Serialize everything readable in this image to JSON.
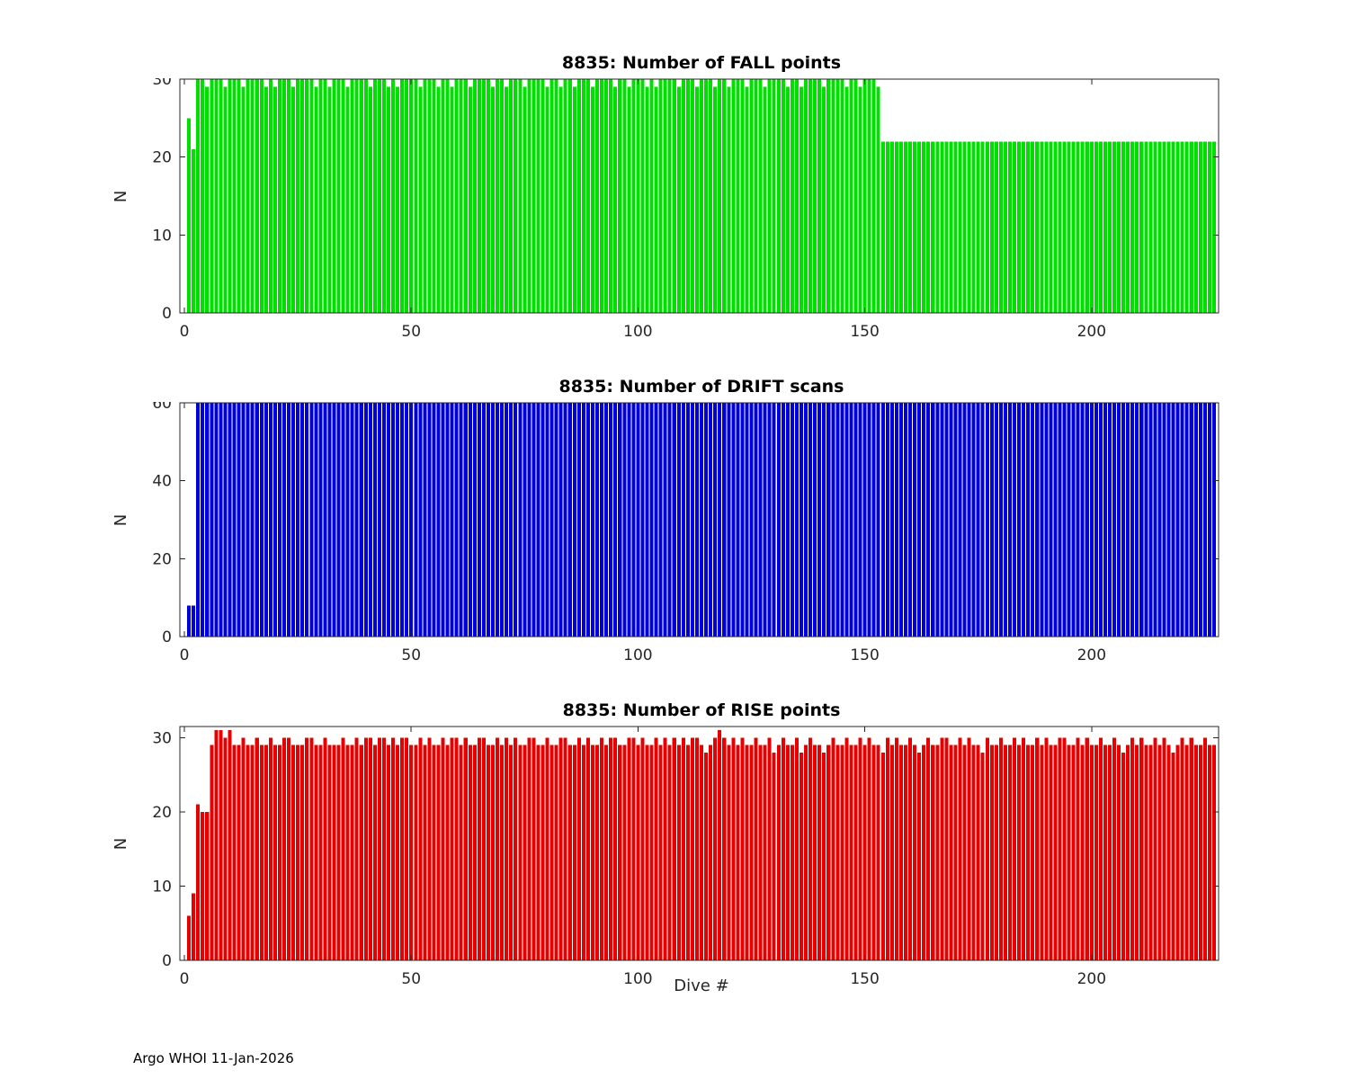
{
  "figure": {
    "footer": "Argo WHOI 11-Jan-2026"
  },
  "style": {
    "background": "#ffffff",
    "axis_color": "#262626",
    "title_color": "#000000",
    "fall_color": "#00e000",
    "drift_color": "#0000dd",
    "rise_color": "#e80000"
  },
  "chart_data": [
    {
      "type": "bar",
      "title": "8835: Number of FALL points",
      "ylabel": "N",
      "color": "#00e000",
      "ylim": [
        0,
        30
      ],
      "yticks": [
        0,
        10,
        20,
        30
      ],
      "xticks": [
        0,
        50,
        100,
        150,
        200
      ],
      "x_start": 1,
      "values": [
        25,
        21,
        30,
        30,
        29,
        30,
        30,
        30,
        29,
        30,
        30,
        30,
        29,
        30,
        30,
        30,
        30,
        29,
        30,
        29,
        30,
        30,
        30,
        29,
        30,
        30,
        30,
        30,
        29,
        30,
        30,
        29,
        30,
        30,
        30,
        29,
        30,
        30,
        30,
        30,
        29,
        30,
        30,
        30,
        29,
        30,
        29,
        30,
        30,
        30,
        30,
        29,
        30,
        30,
        30,
        29,
        30,
        30,
        29,
        30,
        30,
        30,
        29,
        30,
        30,
        30,
        30,
        29,
        30,
        30,
        29,
        30,
        30,
        30,
        29,
        30,
        30,
        30,
        30,
        29,
        30,
        30,
        29,
        30,
        30,
        29,
        30,
        30,
        30,
        29,
        30,
        30,
        30,
        30,
        29,
        30,
        30,
        29,
        30,
        30,
        30,
        29,
        30,
        29,
        30,
        30,
        30,
        30,
        29,
        30,
        30,
        30,
        29,
        30,
        30,
        30,
        29,
        30,
        30,
        29,
        30,
        30,
        30,
        29,
        30,
        30,
        30,
        29,
        30,
        30,
        30,
        30,
        29,
        30,
        30,
        29,
        30,
        30,
        30,
        30,
        29,
        30,
        30,
        30,
        30,
        29,
        30,
        30,
        29,
        30,
        30,
        30,
        29,
        22,
        22,
        22,
        22,
        22,
        22,
        22,
        22,
        22,
        22,
        22,
        22,
        22,
        22,
        22,
        22,
        22,
        22,
        22,
        22,
        22,
        22,
        22,
        22,
        22,
        22,
        22,
        22,
        22,
        22,
        22,
        22,
        22,
        22,
        22,
        22,
        22,
        22,
        22,
        22,
        22,
        22,
        22,
        22,
        22,
        22,
        22,
        22,
        22,
        22,
        22,
        22,
        22,
        22,
        22,
        22,
        22,
        22,
        22,
        22,
        22,
        22,
        22,
        22,
        22,
        22,
        22,
        22,
        22,
        22,
        22,
        22,
        22,
        22
      ]
    },
    {
      "type": "bar",
      "title": "8835: Number of DRIFT scans",
      "ylabel": "N",
      "color": "#0000dd",
      "ylim": [
        0,
        60
      ],
      "yticks": [
        0,
        20,
        40,
        60
      ],
      "xticks": [
        0,
        50,
        100,
        150,
        200
      ],
      "x_start": 1,
      "values": [
        8,
        8,
        60,
        60,
        60,
        60,
        60,
        60,
        60,
        60,
        60,
        60,
        60,
        60,
        60,
        60,
        60,
        60,
        60,
        60,
        60,
        60,
        60,
        60,
        60,
        60,
        60,
        60,
        60,
        60,
        60,
        60,
        60,
        60,
        60,
        60,
        60,
        60,
        60,
        60,
        60,
        60,
        60,
        60,
        60,
        60,
        60,
        60,
        60,
        60,
        60,
        60,
        60,
        60,
        60,
        60,
        60,
        60,
        60,
        60,
        60,
        60,
        60,
        60,
        60,
        60,
        60,
        60,
        60,
        60,
        60,
        60,
        60,
        60,
        60,
        60,
        60,
        60,
        60,
        60,
        60,
        60,
        60,
        60,
        60,
        60,
        60,
        60,
        60,
        60,
        60,
        60,
        60,
        60,
        60,
        60,
        60,
        60,
        60,
        60,
        60,
        60,
        60,
        60,
        60,
        60,
        60,
        60,
        60,
        60,
        60,
        60,
        60,
        60,
        60,
        60,
        60,
        60,
        60,
        60,
        60,
        60,
        60,
        60,
        60,
        60,
        60,
        60,
        60,
        60,
        60,
        60,
        60,
        60,
        60,
        60,
        60,
        60,
        60,
        60,
        60,
        60,
        60,
        60,
        60,
        60,
        60,
        60,
        60,
        60,
        60,
        60,
        60,
        60,
        60,
        60,
        60,
        60,
        60,
        60,
        60,
        60,
        60,
        60,
        60,
        60,
        60,
        60,
        60,
        60,
        60,
        60,
        60,
        60,
        60,
        60,
        60,
        60,
        60,
        60,
        60,
        60,
        60,
        60,
        60,
        60,
        60,
        60,
        60,
        60,
        60,
        60,
        60,
        60,
        60,
        60,
        60,
        60,
        60,
        60,
        60,
        60,
        60,
        60,
        60,
        60,
        60,
        60,
        60,
        60,
        60,
        60,
        60,
        60,
        60,
        60,
        60,
        60,
        60,
        60,
        60,
        60,
        60,
        60,
        60,
        60,
        60
      ]
    },
    {
      "type": "bar",
      "title": "8835: Number of RISE points",
      "ylabel": "N",
      "xlabel": "Dive #",
      "color": "#e80000",
      "ylim": [
        0,
        31.5
      ],
      "yticks": [
        0,
        10,
        20,
        30
      ],
      "xticks": [
        0,
        50,
        100,
        150,
        200
      ],
      "x_start": 1,
      "values": [
        6,
        9,
        21,
        20,
        20,
        29,
        31,
        31,
        30,
        31,
        29,
        29,
        30,
        29,
        29,
        30,
        29,
        29,
        30,
        29,
        29,
        30,
        30,
        29,
        29,
        29,
        30,
        30,
        29,
        29,
        30,
        29,
        29,
        29,
        30,
        29,
        29,
        30,
        29,
        30,
        30,
        29,
        30,
        30,
        29,
        30,
        29,
        30,
        30,
        29,
        29,
        30,
        29,
        30,
        29,
        29,
        30,
        29,
        30,
        30,
        29,
        30,
        29,
        29,
        30,
        30,
        29,
        29,
        30,
        29,
        30,
        29,
        30,
        29,
        29,
        30,
        30,
        29,
        29,
        30,
        29,
        29,
        30,
        30,
        29,
        29,
        30,
        29,
        30,
        29,
        29,
        30,
        29,
        30,
        30,
        29,
        29,
        30,
        30,
        29,
        30,
        29,
        29,
        30,
        29,
        30,
        29,
        30,
        29,
        30,
        29,
        30,
        30,
        29,
        28,
        29,
        30,
        31,
        30,
        29,
        30,
        29,
        30,
        29,
        29,
        30,
        29,
        29,
        30,
        28,
        29,
        30,
        29,
        29,
        30,
        28,
        29,
        30,
        29,
        29,
        28,
        29,
        30,
        29,
        29,
        30,
        29,
        29,
        30,
        29,
        30,
        29,
        29,
        28,
        30,
        29,
        30,
        29,
        29,
        30,
        29,
        28,
        29,
        30,
        29,
        29,
        30,
        30,
        29,
        29,
        30,
        29,
        30,
        29,
        29,
        28,
        30,
        29,
        29,
        30,
        29,
        29,
        30,
        29,
        30,
        29,
        29,
        30,
        29,
        30,
        29,
        29,
        30,
        30,
        29,
        29,
        30,
        29,
        30,
        29,
        29,
        30,
        29,
        29,
        30,
        29,
        28,
        29,
        30,
        29,
        30,
        29,
        29,
        30,
        29,
        30,
        29,
        28,
        29,
        30,
        29,
        30,
        29,
        29,
        30,
        29,
        29
      ]
    }
  ]
}
